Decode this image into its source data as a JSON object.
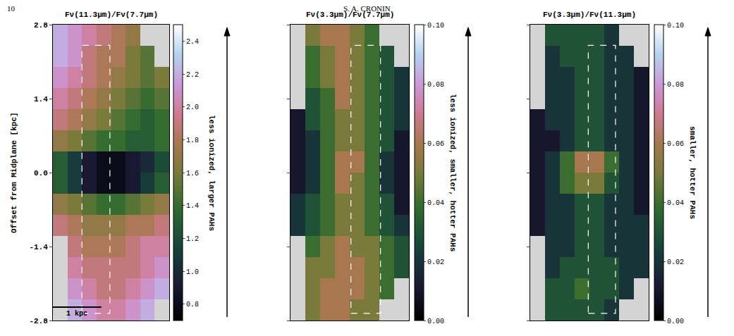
{
  "page": {
    "number": "10",
    "header": "S. A. CRONIN"
  },
  "chart_data": [
    {
      "type": "heatmap",
      "title": "Fν(11.3μm)/Fν(7.7μm)",
      "ylabel": "Offset from Midplane [kpc]",
      "x": [
        -1.05,
        -0.75,
        -0.45,
        -0.15,
        0.15,
        0.45,
        0.75,
        1.05
      ],
      "y": [
        2.6,
        2.2,
        1.8,
        1.4,
        1.0,
        0.6,
        0.2,
        -0.2,
        -0.6,
        -1.0,
        -1.4,
        -1.8,
        -2.2,
        -2.6
      ],
      "z": [
        [
          2.2,
          2.1,
          2.0,
          1.9,
          1.8,
          1.7,
          null,
          null
        ],
        [
          2.2,
          2.1,
          1.9,
          1.8,
          1.8,
          1.6,
          1.5,
          null
        ],
        [
          2.1,
          2.0,
          1.9,
          1.8,
          1.7,
          1.6,
          1.5,
          1.6
        ],
        [
          2.0,
          1.9,
          1.8,
          1.7,
          1.6,
          1.5,
          1.4,
          1.5
        ],
        [
          1.9,
          1.8,
          1.7,
          1.6,
          1.5,
          1.4,
          1.3,
          1.4
        ],
        [
          1.7,
          1.6,
          1.5,
          1.4,
          1.4,
          1.3,
          1.3,
          1.4
        ],
        [
          1.3,
          1.1,
          0.9,
          0.8,
          0.8,
          0.9,
          1.0,
          1.2
        ],
        [
          1.3,
          1.1,
          0.9,
          0.8,
          0.8,
          0.9,
          1.1,
          1.3
        ],
        [
          1.7,
          1.6,
          1.5,
          1.4,
          1.4,
          1.5,
          1.6,
          1.7
        ],
        [
          1.9,
          1.8,
          1.7,
          1.7,
          1.7,
          1.8,
          1.8,
          1.9
        ],
        [
          null,
          1.9,
          1.8,
          1.8,
          1.8,
          1.9,
          2.0,
          2.0
        ],
        [
          null,
          2.0,
          1.9,
          1.9,
          1.9,
          1.9,
          2.0,
          2.1
        ],
        [
          null,
          2.1,
          2.0,
          1.9,
          1.9,
          2.0,
          2.1,
          2.2
        ],
        [
          null,
          2.2,
          2.1,
          2.0,
          2.0,
          2.1,
          2.2,
          null
        ]
      ],
      "xlim": [
        -1.2,
        1.2
      ],
      "ylim": [
        -2.8,
        2.8
      ],
      "yticks": [
        -2.8,
        -1.4,
        {
          "value": 0,
          "label": "0.0"
        },
        1.4,
        2.8
      ],
      "tick_labels": "y",
      "colorbar": {
        "range": [
          0.7,
          2.5
        ],
        "ticks": [
          0.8,
          {
            "value": 1,
            "label": "1.0"
          },
          1.2,
          1.4,
          1.6,
          1.8,
          {
            "value": 2,
            "label": "2.0"
          },
          2.2,
          2.4
        ],
        "label": "less ionized, larger PAHs"
      },
      "scale_bar": {
        "length": 1,
        "label": "1 kpc"
      }
    },
    {
      "type": "heatmap",
      "title": "Fν(3.3μm)/Fν(7.7μm)",
      "x": [
        -1.05,
        -0.75,
        -0.45,
        -0.15,
        0.15,
        0.45,
        0.75,
        1.05
      ],
      "y": [
        2.6,
        2.2,
        1.8,
        1.4,
        1.0,
        0.6,
        0.2,
        -0.2,
        -0.6,
        -1.0,
        -1.4,
        -1.8,
        -2.2,
        -2.6
      ],
      "z": [
        [
          null,
          0.05,
          0.06,
          0.06,
          0.05,
          0.04,
          null,
          null
        ],
        [
          null,
          0.04,
          0.05,
          0.06,
          0.05,
          0.04,
          0.03,
          null
        ],
        [
          null,
          0.04,
          0.05,
          0.06,
          0.05,
          0.04,
          0.03,
          0.02
        ],
        [
          null,
          0.03,
          0.04,
          0.06,
          0.05,
          0.04,
          0.03,
          0.02
        ],
        [
          0.01,
          0.03,
          0.04,
          0.05,
          0.05,
          0.04,
          0.03,
          0.02
        ],
        [
          0.01,
          0.02,
          0.04,
          0.05,
          0.05,
          0.04,
          0.03,
          0.01
        ],
        [
          0.01,
          0.02,
          0.04,
          0.06,
          0.06,
          0.04,
          0.02,
          0.01
        ],
        [
          0.01,
          0.02,
          0.04,
          0.06,
          0.05,
          0.04,
          0.02,
          0.01
        ],
        [
          0.02,
          0.03,
          0.04,
          0.05,
          0.05,
          0.04,
          0.03,
          0.01
        ],
        [
          0.02,
          0.03,
          0.04,
          0.05,
          0.05,
          0.04,
          0.03,
          0.02
        ],
        [
          null,
          0.04,
          0.05,
          0.06,
          0.05,
          0.05,
          0.04,
          0.03
        ],
        [
          null,
          0.05,
          0.05,
          0.06,
          0.06,
          0.05,
          0.04,
          0.03
        ],
        [
          null,
          0.05,
          0.06,
          0.06,
          0.06,
          0.05,
          0.04,
          null
        ],
        [
          null,
          0.05,
          0.06,
          0.06,
          0.05,
          0.05,
          null,
          null
        ]
      ],
      "xlim": [
        -1.2,
        1.2
      ],
      "ylim": [
        -2.8,
        2.8
      ],
      "yticks": [
        -2.8,
        -1.4,
        {
          "value": 0,
          "label": "0.0"
        },
        1.4,
        2.8
      ],
      "tick_labels": false,
      "colorbar": {
        "range": [
          0,
          0.1
        ],
        "ticks": [
          {
            "value": 0,
            "label": "0.00"
          },
          {
            "value": 0.02,
            "label": "0.02"
          },
          {
            "value": 0.04,
            "label": "0.04"
          },
          {
            "value": 0.06,
            "label": "0.06"
          },
          {
            "value": 0.08,
            "label": "0.08"
          },
          {
            "value": 0.1,
            "label": "0.10"
          }
        ],
        "label": "less ionized, smaller, hotter PAHs"
      }
    },
    {
      "type": "heatmap",
      "title": "Fν(3.3μm)/Fν(11.3μm)",
      "x": [
        -1.05,
        -0.75,
        -0.45,
        -0.15,
        0.15,
        0.45,
        0.75,
        1.05
      ],
      "y": [
        2.6,
        2.2,
        1.8,
        1.4,
        1.0,
        0.6,
        0.2,
        -0.2,
        -0.6,
        -1.0,
        -1.4,
        -1.8,
        -2.2,
        -2.6
      ],
      "z": [
        [
          null,
          0.03,
          0.03,
          0.03,
          0.03,
          0.02,
          null,
          null
        ],
        [
          null,
          0.02,
          0.03,
          0.03,
          0.03,
          0.02,
          0.02,
          null
        ],
        [
          null,
          0.02,
          0.02,
          0.03,
          0.03,
          0.02,
          0.02,
          0.01
        ],
        [
          null,
          0.02,
          0.02,
          0.03,
          0.03,
          0.02,
          0.02,
          0.01
        ],
        [
          0.01,
          0.02,
          0.02,
          0.03,
          0.03,
          0.02,
          0.02,
          0.01
        ],
        [
          0.01,
          0.01,
          0.02,
          0.03,
          0.03,
          0.02,
          0.02,
          0.01
        ],
        [
          0.01,
          0.02,
          0.04,
          0.06,
          0.06,
          0.04,
          0.02,
          0.01
        ],
        [
          0.01,
          0.02,
          0.04,
          0.05,
          0.05,
          0.03,
          0.02,
          0.01
        ],
        [
          0.01,
          0.02,
          0.02,
          0.03,
          0.03,
          0.02,
          0.02,
          0.01
        ],
        [
          0.01,
          0.02,
          0.02,
          0.03,
          0.03,
          0.02,
          0.02,
          0.02
        ],
        [
          null,
          0.02,
          0.02,
          0.03,
          0.03,
          0.02,
          0.02,
          0.02
        ],
        [
          null,
          0.02,
          0.03,
          0.03,
          0.03,
          0.03,
          0.02,
          0.02
        ],
        [
          null,
          0.03,
          0.03,
          0.04,
          0.03,
          0.03,
          0.02,
          null
        ],
        [
          null,
          0.03,
          0.03,
          0.03,
          0.03,
          0.02,
          null,
          null
        ]
      ],
      "xlim": [
        -1.2,
        1.2
      ],
      "ylim": [
        -2.8,
        2.8
      ],
      "yticks": [
        -2.8,
        -1.4,
        {
          "value": 0,
          "label": "0.0"
        },
        1.4,
        2.8
      ],
      "tick_labels": false,
      "colorbar": {
        "range": [
          0,
          0.1
        ],
        "ticks": [
          {
            "value": 0,
            "label": "0.00"
          },
          {
            "value": 0.02,
            "label": "0.02"
          },
          {
            "value": 0.04,
            "label": "0.04"
          },
          {
            "value": 0.06,
            "label": "0.06"
          },
          {
            "value": 0.08,
            "label": "0.08"
          },
          {
            "value": 0.1,
            "label": "0.10"
          }
        ],
        "label": "smaller, hotter PAHs"
      }
    }
  ]
}
